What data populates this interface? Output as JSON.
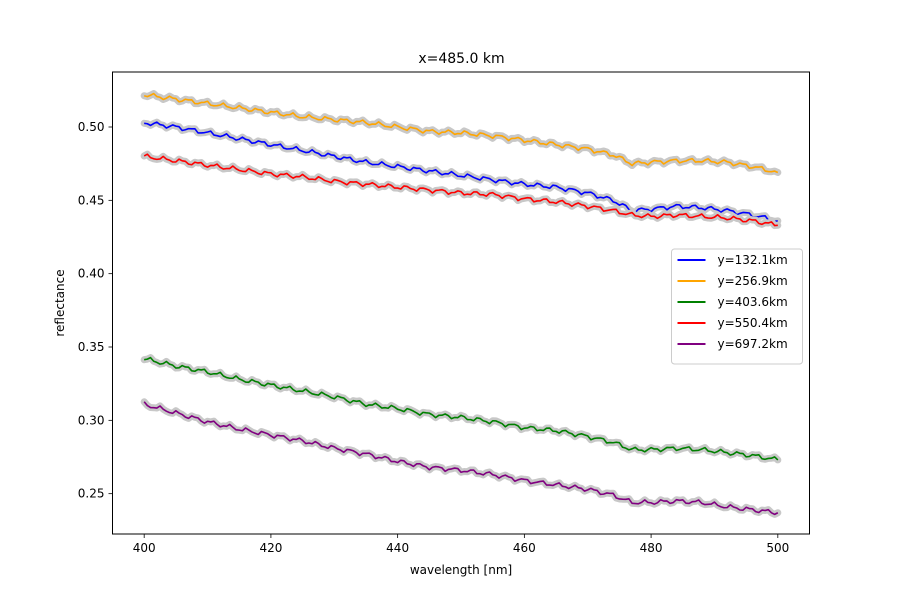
{
  "chart_data": {
    "type": "line",
    "title": "x=485.0 km",
    "xlabel": "wavelength [nm]",
    "ylabel": "reflectance",
    "xlim": [
      395,
      505
    ],
    "ylim": [
      0.2225,
      0.5375
    ],
    "xticks": [
      400,
      420,
      440,
      460,
      480,
      500
    ],
    "xtick_labels": [
      "400",
      "420",
      "440",
      "460",
      "480",
      "500"
    ],
    "yticks": [
      0.25,
      0.3,
      0.35,
      0.4,
      0.45,
      0.5
    ],
    "ytick_labels": [
      "0.25",
      "0.30",
      "0.35",
      "0.40",
      "0.45",
      "0.50"
    ],
    "grid": false,
    "legend_position": "center-right",
    "uncertainty_band_color": "#c8c8c8",
    "series": [
      {
        "name": "y=132.1km",
        "color": "#0000ff",
        "x": [
          400,
          405,
          410,
          415,
          420,
          425,
          430,
          435,
          440,
          445,
          450,
          455,
          460,
          465,
          470,
          474,
          477,
          480,
          484,
          488,
          492,
          496,
          500
        ],
        "y": [
          0.503,
          0.5,
          0.496,
          0.492,
          0.488,
          0.484,
          0.48,
          0.476,
          0.473,
          0.47,
          0.467,
          0.464,
          0.461,
          0.459,
          0.455,
          0.45,
          0.443,
          0.444,
          0.446,
          0.445,
          0.443,
          0.44,
          0.436
        ]
      },
      {
        "name": "y=256.9km",
        "color": "#ffa500",
        "x": [
          400,
          405,
          410,
          415,
          420,
          425,
          430,
          435,
          440,
          445,
          450,
          455,
          460,
          465,
          470,
          474,
          477,
          480,
          484,
          488,
          492,
          496,
          500
        ],
        "y": [
          0.522,
          0.519,
          0.516,
          0.513,
          0.51,
          0.507,
          0.505,
          0.503,
          0.5,
          0.497,
          0.496,
          0.494,
          0.491,
          0.488,
          0.485,
          0.481,
          0.475,
          0.476,
          0.477,
          0.477,
          0.476,
          0.473,
          0.469
        ]
      },
      {
        "name": "y=403.6km",
        "color": "#008000",
        "x": [
          400,
          405,
          410,
          415,
          420,
          425,
          430,
          435,
          440,
          445,
          450,
          455,
          460,
          465,
          470,
          474,
          477,
          480,
          484,
          488,
          492,
          496,
          500
        ],
        "y": [
          0.342,
          0.337,
          0.333,
          0.328,
          0.324,
          0.32,
          0.316,
          0.311,
          0.308,
          0.304,
          0.302,
          0.299,
          0.295,
          0.293,
          0.289,
          0.285,
          0.28,
          0.28,
          0.281,
          0.28,
          0.278,
          0.276,
          0.273
        ]
      },
      {
        "name": "y=550.4km",
        "color": "#ff0000",
        "x": [
          400,
          405,
          410,
          415,
          420,
          425,
          430,
          435,
          440,
          445,
          450,
          455,
          460,
          465,
          470,
          474,
          477,
          480,
          484,
          488,
          492,
          496,
          500
        ],
        "y": [
          0.48,
          0.477,
          0.474,
          0.471,
          0.468,
          0.466,
          0.463,
          0.461,
          0.459,
          0.457,
          0.455,
          0.454,
          0.451,
          0.449,
          0.446,
          0.443,
          0.44,
          0.439,
          0.44,
          0.439,
          0.438,
          0.436,
          0.433
        ]
      },
      {
        "name": "y=697.2km",
        "color": "#800080",
        "x": [
          400,
          405,
          410,
          415,
          420,
          425,
          430,
          435,
          440,
          445,
          450,
          455,
          460,
          465,
          470,
          474,
          477,
          480,
          484,
          488,
          492,
          496,
          500
        ],
        "y": [
          0.311,
          0.305,
          0.299,
          0.294,
          0.29,
          0.286,
          0.281,
          0.277,
          0.272,
          0.268,
          0.266,
          0.263,
          0.259,
          0.256,
          0.253,
          0.249,
          0.244,
          0.244,
          0.245,
          0.244,
          0.241,
          0.239,
          0.237
        ]
      }
    ]
  }
}
